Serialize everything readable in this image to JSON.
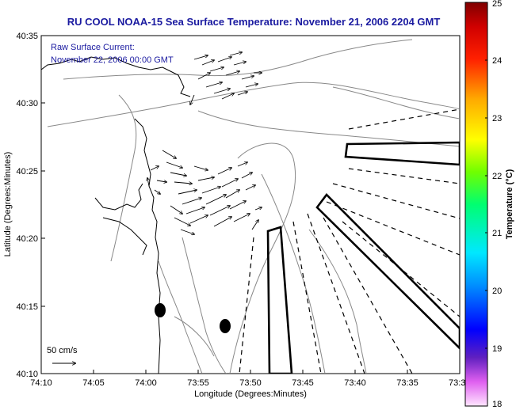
{
  "title": "RU COOL  NOAA-15  Sea Surface Temperature:  November 21, 2006 2204 GMT",
  "current_note": {
    "line1": "Raw Surface Current:",
    "line2": "November 22, 2006 00:00 GMT"
  },
  "scale_label": "50 cm/s",
  "x_axis": {
    "label": "Longitude (Degrees:Minutes)",
    "ticks": [
      "74:10",
      "74:05",
      "74:00",
      "73:55",
      "73:50",
      "73:45",
      "73:40",
      "73:35",
      "73:3"
    ]
  },
  "y_axis": {
    "label": "Latitude (Degrees:Minutes)",
    "ticks": [
      "40:35",
      "40:30",
      "40:25",
      "40:20",
      "40:15",
      "40:10"
    ]
  },
  "colorbar": {
    "label": "Temperature (°C)",
    "ticks": [
      "25",
      "24",
      "23",
      "22",
      "21",
      "20",
      "19",
      "18"
    ],
    "range": [
      18,
      25
    ],
    "colors": [
      "#ffccff",
      "#e040f0",
      "#8030d0",
      "#0000ff",
      "#0080ff",
      "#00e0ff",
      "#00ff80",
      "#40ff00",
      "#c0ff00",
      "#ffff00",
      "#ffb000",
      "#ff6000",
      "#ff0000",
      "#c00000",
      "#800000"
    ]
  },
  "colors": {
    "title": "#1a1aa0",
    "contour": "#888888",
    "coast": "#000000"
  }
}
